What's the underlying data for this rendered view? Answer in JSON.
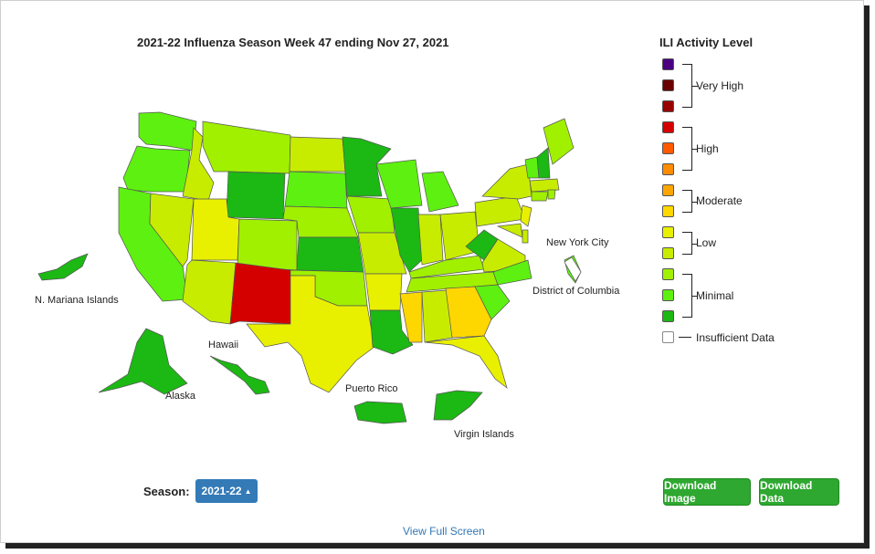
{
  "map": {
    "title": "2021-22 Influenza Season Week 47 ending Nov 27, 2021",
    "territory_labels": {
      "new_york_city": "New York City",
      "district_of_columbia": "District of Columbia",
      "n_mariana_islands": "N. Mariana Islands",
      "hawaii": "Hawaii",
      "alaska": "Alaska",
      "puerto_rico": "Puerto Rico",
      "virgin_islands": "Virgin Islands"
    }
  },
  "legend": {
    "title": "ILI Activity Level",
    "groups": [
      {
        "label": "Very High",
        "colors": [
          "#4b0082",
          "#6b0000",
          "#990000"
        ]
      },
      {
        "label": "High",
        "colors": [
          "#d40000",
          "#ff5a00",
          "#ff8c00"
        ]
      },
      {
        "label": "Moderate",
        "colors": [
          "#ffa500",
          "#ffd700"
        ]
      },
      {
        "label": "Low",
        "colors": [
          "#e8f000",
          "#c8ec00"
        ]
      },
      {
        "label": "Minimal",
        "colors": [
          "#a0f000",
          "#5ef010",
          "#1cb814"
        ]
      },
      {
        "label": "Insufficient Data",
        "colors": [
          "#ffffff"
        ]
      }
    ]
  },
  "controls": {
    "season_label": "Season:",
    "season_value": "2021-22",
    "download_image": "Download Image",
    "download_data": "Download Data",
    "view_full_screen": "View Full Screen"
  }
}
